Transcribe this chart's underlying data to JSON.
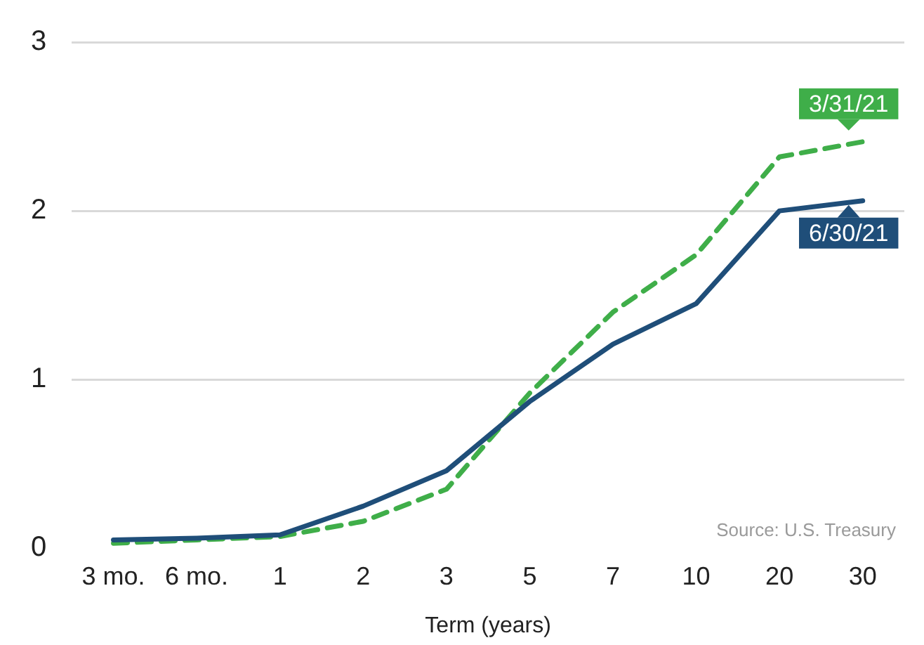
{
  "chart_data": {
    "type": "line",
    "xlabel": "Term (years)",
    "categories": [
      "3 mo.",
      "6 mo.",
      "1",
      "2",
      "3",
      "5",
      "7",
      "10",
      "20",
      "30"
    ],
    "series": [
      {
        "name": "6/30/21",
        "color": "#1f4e79",
        "line_style": "solid",
        "values": [
          0.05,
          0.06,
          0.08,
          0.25,
          0.46,
          0.87,
          1.21,
          1.45,
          2.0,
          2.06
        ]
      },
      {
        "name": "3/31/21",
        "color": "#3fae49",
        "line_style": "dashed",
        "values": [
          0.03,
          0.05,
          0.07,
          0.16,
          0.35,
          0.92,
          1.4,
          1.74,
          2.32,
          2.41
        ]
      }
    ],
    "ylim": [
      0,
      3
    ],
    "yticks": [
      0,
      1,
      2,
      3
    ],
    "grid": "y",
    "legend": "right",
    "marker": "none",
    "annotations": [
      "Source: U.S. Treasury"
    ]
  }
}
